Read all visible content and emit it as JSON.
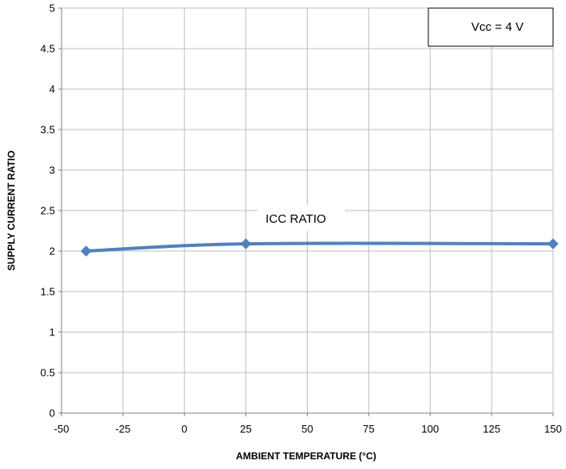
{
  "chart_data": {
    "type": "line",
    "title": "",
    "xlabel": "AMBIENT TEMPERATURE  (°C)",
    "ylabel": "SUPPLY CURRENT RATIO",
    "xlim": [
      -50,
      150
    ],
    "ylim": [
      0,
      5
    ],
    "x_ticks": [
      "-50",
      "-25",
      "0",
      "25",
      "50",
      "75",
      "100",
      "125",
      "150"
    ],
    "y_ticks": [
      "0",
      "0.5",
      "1",
      "1.5",
      "2",
      "2.5",
      "3",
      "3.5",
      "4",
      "4.5",
      "5"
    ],
    "grid": true,
    "series": [
      {
        "name": "ICC RATIO",
        "x": [
          -40,
          25,
          150
        ],
        "y": [
          2.0,
          2.09,
          2.09
        ],
        "color": "#4f81bd",
        "marker": "diamond"
      }
    ],
    "annotations": [
      {
        "text": "Vcc = 4 V",
        "boxed": true,
        "placement": "top-right"
      },
      {
        "text": "ICC RATIO",
        "boxed": false,
        "placement": "near-series"
      }
    ]
  }
}
